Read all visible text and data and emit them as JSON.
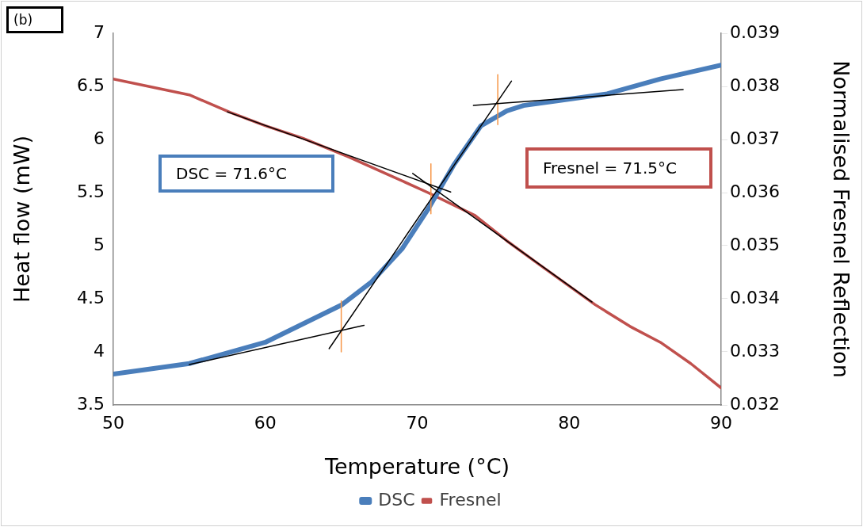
{
  "chart_data": {
    "type": "line",
    "xlabel": "Temperature (°C)",
    "ylabel": "Heat flow (mW)",
    "y2label": "Normalised Fresnel Reflection",
    "xlim": [
      50,
      90
    ],
    "xticks": [
      50,
      60,
      70,
      80,
      90
    ],
    "ylim": [
      3.5,
      7
    ],
    "yticks": [
      3.5,
      4,
      4.5,
      5,
      5.5,
      6,
      6.5,
      7
    ],
    "y2lim": [
      0.032,
      0.039
    ],
    "y2ticks": [
      0.032,
      0.033,
      0.034,
      0.035,
      0.036,
      0.037,
      0.038,
      0.039
    ],
    "grid": false,
    "legend": "bottom",
    "line_style": "solid",
    "annotations": [
      "(b)",
      "DSC = 71.6°C",
      "Fresnel = 71.5°C"
    ],
    "series": [
      {
        "name": "DSC",
        "color": "#4a7ebb",
        "x": [
          50,
          55,
          60,
          65,
          67,
          69,
          70.7,
          72.4,
          74.2,
          75.9,
          77,
          79,
          82.5,
          86,
          90
        ],
        "values": [
          3.79,
          3.89,
          4.09,
          4.44,
          4.66,
          4.97,
          5.34,
          5.76,
          6.13,
          6.27,
          6.32,
          6.36,
          6.43,
          6.57,
          6.7
        ]
      },
      {
        "name": "Fresnel",
        "color": "#c0504d",
        "axis": "y2",
        "x": [
          50,
          55,
          57.7,
          60,
          62.5,
          65.5,
          68,
          70.7,
          73.8,
          75.9,
          78,
          81.7,
          84,
          86,
          88,
          90
        ],
        "values": [
          0.03814,
          0.03784,
          0.03751,
          0.03726,
          0.03702,
          0.03667,
          0.03635,
          0.036,
          0.03557,
          0.03509,
          0.03465,
          0.03389,
          0.03348,
          0.03318,
          0.03278,
          0.03232
        ]
      },
      {
        "color": "#000000",
        "x": [
          55,
          66.5
        ],
        "values": [
          3.88,
          4.25
        ]
      },
      {
        "color": "#000000",
        "x": [
          64.2,
          76.2
        ],
        "values": [
          4.03,
          6.55
        ]
      },
      {
        "color": "#000000",
        "x": [
          73.7,
          87.5
        ],
        "values": [
          6.32,
          6.47
        ]
      },
      {
        "color": "#000000",
        "axis": "y2",
        "x": [
          57.5,
          72.2
        ],
        "values": [
          0.03752,
          0.03601
        ]
      },
      {
        "color": "#000000",
        "axis": "y2",
        "x": [
          69.7,
          81.5
        ],
        "values": [
          0.03636,
          0.03394
        ]
      },
      {
        "color": "#f79646",
        "x": [
          65,
          65
        ],
        "values": [
          4.0,
          4.48
        ]
      },
      {
        "color": "#f79646",
        "x": [
          70.9,
          70.9
        ],
        "values": [
          5.3,
          5.77
        ]
      },
      {
        "color": "#f79646",
        "x": [
          75.3,
          75.3
        ],
        "values": [
          6.14,
          6.61
        ]
      }
    ]
  }
}
